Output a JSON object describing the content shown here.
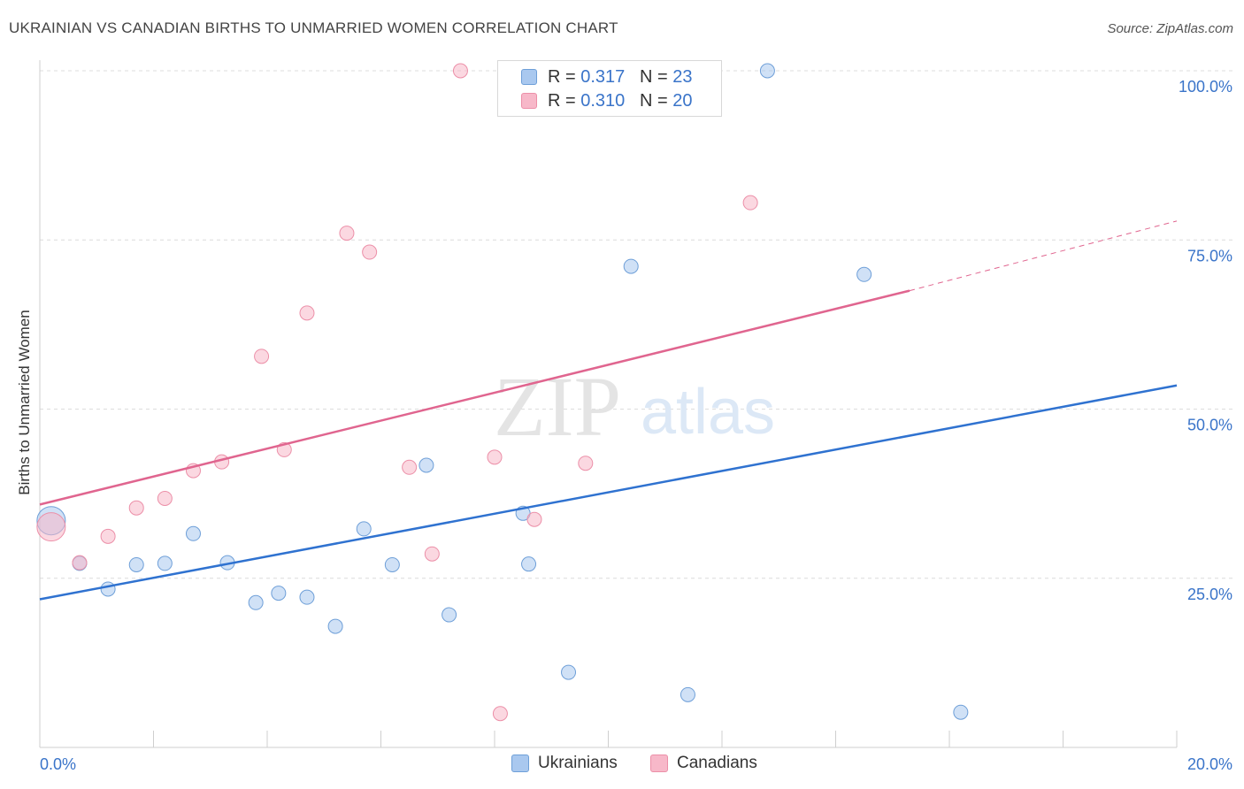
{
  "title": "UKRAINIAN VS CANADIAN BIRTHS TO UNMARRIED WOMEN CORRELATION CHART",
  "source": "Source: ZipAtlas.com",
  "legend": {
    "rows": [
      {
        "r_label": "R = ",
        "r_value": "0.317",
        "n_label": "N = ",
        "n_value": "23",
        "color": "#a9c8ef"
      },
      {
        "r_label": "R = ",
        "r_value": "0.310",
        "n_label": "N = ",
        "n_value": "20",
        "color": "#f7b8c9"
      }
    ]
  },
  "bottom_legend": [
    "Ukrainians",
    "Canadians"
  ],
  "watermark": {
    "zip": "ZIP",
    "atlas": "atlas"
  },
  "chart_data": {
    "type": "scatter",
    "title": "UKRAINIAN VS CANADIAN BIRTHS TO UNMARRIED WOMEN CORRELATION CHART",
    "xlabel": "",
    "ylabel": "Births to Unmarried Women",
    "xlim": [
      0,
      20
    ],
    "ylim": [
      0,
      100
    ],
    "x_tick_labels": [
      "0.0%",
      "20.0%"
    ],
    "y_tick_labels": [
      "100.0%",
      "75.0%",
      "50.0%",
      "25.0%"
    ],
    "y_ticks": [
      100,
      75,
      50,
      25
    ],
    "grid": true,
    "legend_placement": "top-center",
    "series": [
      {
        "name": "Ukrainians",
        "color": "#a9c8ef",
        "stroke": "#6e9fd8",
        "line_color": "#2f72d0",
        "r": "0.317",
        "n": "23",
        "trend": {
          "x": [
            0,
            20
          ],
          "y": [
            21.9,
            53.5
          ]
        },
        "points": [
          {
            "x": 0.2,
            "y": 33.5,
            "big": true
          },
          {
            "x": 0.7,
            "y": 27.2
          },
          {
            "x": 1.2,
            "y": 23.4
          },
          {
            "x": 1.7,
            "y": 27.0
          },
          {
            "x": 2.2,
            "y": 27.2
          },
          {
            "x": 2.7,
            "y": 31.6
          },
          {
            "x": 3.3,
            "y": 27.3
          },
          {
            "x": 3.8,
            "y": 21.4
          },
          {
            "x": 4.2,
            "y": 22.8
          },
          {
            "x": 4.7,
            "y": 22.2
          },
          {
            "x": 5.2,
            "y": 17.9
          },
          {
            "x": 5.7,
            "y": 32.3
          },
          {
            "x": 6.2,
            "y": 27.0
          },
          {
            "x": 6.8,
            "y": 41.7
          },
          {
            "x": 7.2,
            "y": 19.6
          },
          {
            "x": 8.5,
            "y": 34.6
          },
          {
            "x": 8.6,
            "y": 27.1
          },
          {
            "x": 9.3,
            "y": 11.1
          },
          {
            "x": 10.4,
            "y": 71.1
          },
          {
            "x": 11.4,
            "y": 7.8
          },
          {
            "x": 12.8,
            "y": 100.0
          },
          {
            "x": 14.5,
            "y": 69.9
          },
          {
            "x": 16.2,
            "y": 5.2
          }
        ]
      },
      {
        "name": "Canadians",
        "color": "#f7b8c9",
        "stroke": "#ec8fa8",
        "line_color": "#e0658f",
        "r": "0.310",
        "n": "20",
        "trend": {
          "x": [
            0,
            15.3
          ],
          "y": [
            35.9,
            67.5
          ]
        },
        "trend_dashed": {
          "x": [
            15.3,
            20
          ],
          "y": [
            67.5,
            77.8
          ]
        },
        "points": [
          {
            "x": 0.2,
            "y": 32.6,
            "big": true
          },
          {
            "x": 0.7,
            "y": 27.3
          },
          {
            "x": 1.2,
            "y": 31.2
          },
          {
            "x": 1.7,
            "y": 35.4
          },
          {
            "x": 2.2,
            "y": 36.8
          },
          {
            "x": 2.7,
            "y": 40.9
          },
          {
            "x": 3.2,
            "y": 42.2
          },
          {
            "x": 3.9,
            "y": 57.8
          },
          {
            "x": 4.3,
            "y": 44.0
          },
          {
            "x": 4.7,
            "y": 64.2
          },
          {
            "x": 5.4,
            "y": 76.0
          },
          {
            "x": 5.8,
            "y": 73.2
          },
          {
            "x": 6.5,
            "y": 41.4
          },
          {
            "x": 6.9,
            "y": 28.6
          },
          {
            "x": 7.4,
            "y": 100.0
          },
          {
            "x": 8.0,
            "y": 42.9
          },
          {
            "x": 8.1,
            "y": 5.0
          },
          {
            "x": 8.7,
            "y": 33.7
          },
          {
            "x": 9.6,
            "y": 42.0
          },
          {
            "x": 12.5,
            "y": 80.5
          }
        ]
      }
    ]
  }
}
